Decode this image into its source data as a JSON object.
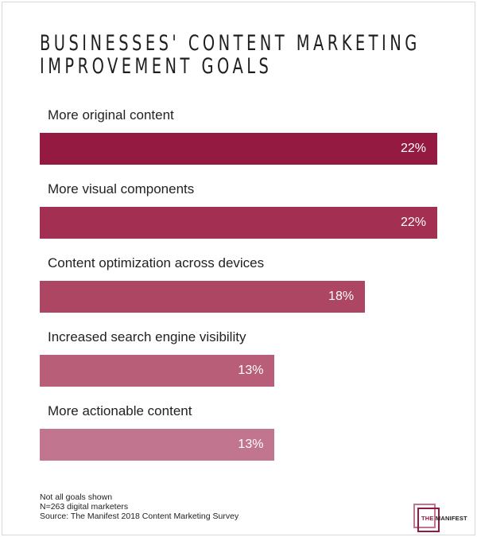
{
  "chart_data": {
    "type": "bar",
    "orientation": "horizontal",
    "title": "BUSINESSES' CONTENT MARKETING IMPROVEMENT GOALS",
    "title_lines": [
      "BUSINESSES' CONTENT MARKETING",
      "IMPROVEMENT GOALS"
    ],
    "categories": [
      "More original content",
      "More visual components",
      "Content optimization across devices",
      "Increased search engine visibility",
      "More actionable content"
    ],
    "values": [
      22,
      22,
      18,
      13,
      13
    ],
    "data_labels": [
      "22%",
      "22%",
      "18%",
      "13%",
      "13%"
    ],
    "unit": "%",
    "colors": [
      "#951a42",
      "#a32f52",
      "#ad4662",
      "#b85e79",
      "#c2758e"
    ],
    "xlabel": "",
    "ylabel": "",
    "grid": false,
    "legend": "none"
  },
  "notes": [
    "Not all goals shown",
    "N=263 digital marketers",
    "Source: The Manifest 2018 Content Marketing Survey"
  ],
  "logo": {
    "text_a": "THE ",
    "text_b": "MANIFEST"
  }
}
